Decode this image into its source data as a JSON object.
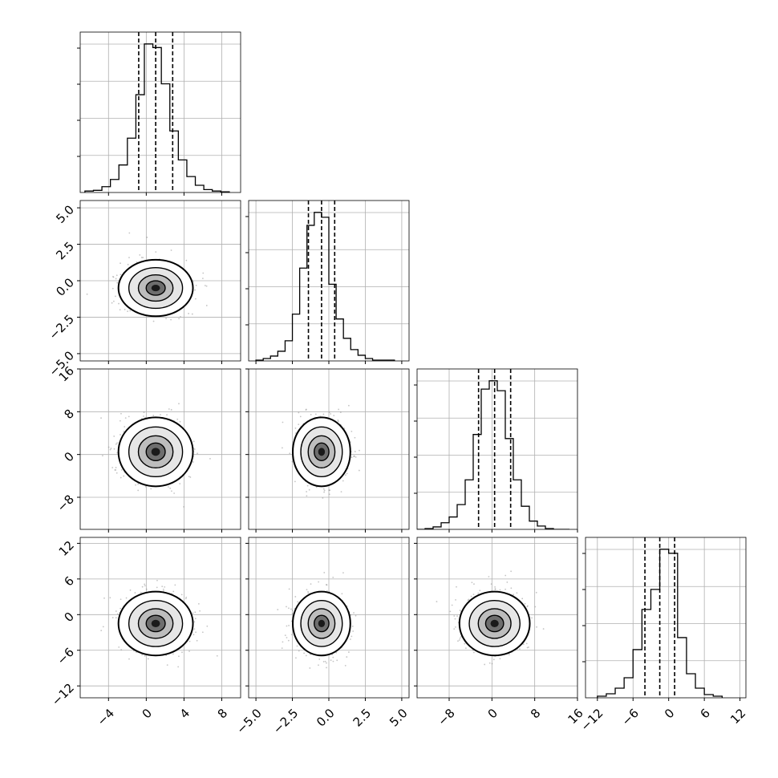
{
  "figure": {
    "type": "corner",
    "num_params": 4
  },
  "chart_data": {
    "type": "corner",
    "ranges": [
      [
        -7,
        10
      ],
      [
        -5.5,
        5.5
      ],
      [
        -14,
        16
      ],
      [
        -14,
        13
      ]
    ],
    "ticks": [
      [
        -4,
        0,
        4,
        8
      ],
      [
        -5.0,
        -2.5,
        0.0,
        2.5,
        5.0
      ],
      [
        -8,
        0,
        8,
        16
      ],
      [
        -12,
        -6,
        0,
        6,
        12
      ]
    ],
    "tick_labels": [
      [
        "−4",
        "0",
        "4",
        "8"
      ],
      [
        "−5.0",
        "−2.5",
        "0.0",
        "2.5",
        "5.0"
      ],
      [
        "−8",
        "0",
        "8",
        "16"
      ],
      [
        "−12",
        "−6",
        "0",
        "6",
        "12"
      ]
    ],
    "means": [
      1.0,
      -0.5,
      0.5,
      -1.5
    ],
    "sigmas": [
      1.8,
      0.9,
      3.0,
      2.5
    ],
    "quantiles": [
      [
        -0.8,
        1.0,
        2.8
      ],
      [
        -1.4,
        -0.5,
        0.4
      ],
      [
        -2.5,
        0.5,
        3.5
      ],
      [
        -4.0,
        -1.5,
        1.0
      ]
    ],
    "histograms": [
      {
        "bins": [
          -6.5,
          -5.6,
          -4.7,
          -3.8,
          -2.9,
          -2.0,
          -1.1,
          -0.2,
          0.7,
          1.6,
          2.5,
          3.4,
          4.3,
          5.2,
          6.1,
          7.0,
          7.9,
          8.8
        ],
        "counts": [
          2,
          3,
          8,
          18,
          38,
          75,
          135,
          205,
          200,
          150,
          85,
          45,
          22,
          10,
          4,
          2,
          1
        ]
      },
      {
        "bins": [
          -5.0,
          -4.5,
          -4.0,
          -3.5,
          -3.0,
          -2.5,
          -2.0,
          -1.5,
          -1.0,
          -0.5,
          0.0,
          0.5,
          1.0,
          1.5,
          2.0,
          2.5,
          3.0,
          3.5,
          4.0,
          4.5
        ],
        "counts": [
          1,
          3,
          6,
          12,
          25,
          58,
          115,
          168,
          184,
          178,
          95,
          52,
          28,
          14,
          7,
          3,
          1,
          1,
          1
        ]
      },
      {
        "bins": [
          -14,
          -12.5,
          -11,
          -9.5,
          -8,
          -6.5,
          -5,
          -3.5,
          -2,
          -0.5,
          1,
          2.5,
          4,
          5.5,
          7,
          8.5,
          10,
          11.5,
          13,
          14.5
        ],
        "counts": [
          0,
          1,
          3,
          8,
          15,
          30,
          60,
          115,
          170,
          180,
          168,
          110,
          60,
          28,
          10,
          4,
          1,
          0,
          0
        ]
      },
      {
        "bins": [
          -12,
          -10.5,
          -9,
          -7.5,
          -6,
          -4.5,
          -3,
          -1.5,
          0,
          1.5,
          3,
          4.5,
          6,
          7.5,
          9
        ],
        "counts": [
          2,
          5,
          12,
          25,
          60,
          110,
          135,
          185,
          180,
          75,
          30,
          12,
          4,
          2
        ]
      }
    ]
  }
}
